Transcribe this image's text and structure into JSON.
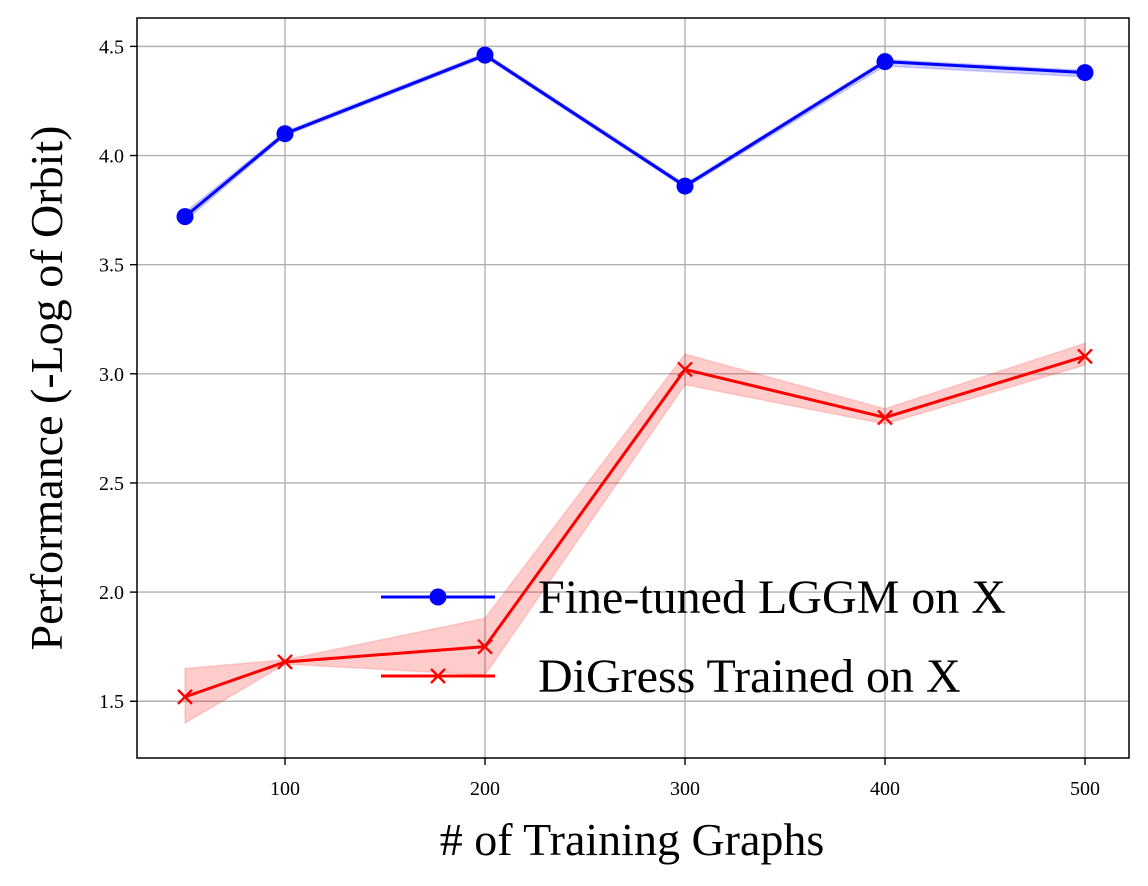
{
  "chart_data": {
    "type": "line",
    "xlabel": "# of Training Graphs",
    "ylabel": "Performance (-Log of Orbit)",
    "xlim": [
      26,
      522
    ],
    "ylim": [
      1.24,
      4.63
    ],
    "xticks": [
      100,
      200,
      300,
      400,
      500
    ],
    "yticks": [
      1.5,
      2.0,
      2.5,
      3.0,
      3.5,
      4.0,
      4.5
    ],
    "xtick_labels": [
      "100",
      "200",
      "300",
      "400",
      "500"
    ],
    "ytick_labels": [
      "1.5",
      "2.0",
      "2.5",
      "3.0",
      "3.5",
      "4.0",
      "4.5"
    ],
    "grid": true,
    "legend_position": "lower-right",
    "x": [
      50,
      100,
      200,
      300,
      400,
      500
    ],
    "series": [
      {
        "name": "Fine-tuned LGGM on X",
        "color": "#0000ff",
        "marker": "circle",
        "values": [
          3.72,
          4.1,
          4.46,
          3.86,
          4.43,
          4.38
        ],
        "band_lower": [
          3.7,
          4.09,
          4.45,
          3.85,
          4.41,
          4.36
        ],
        "band_upper": [
          3.74,
          4.11,
          4.47,
          3.87,
          4.44,
          4.39
        ]
      },
      {
        "name": "DiGress Trained on X",
        "color": "#ff0000",
        "marker": "x",
        "values": [
          1.52,
          1.68,
          1.75,
          3.02,
          2.8,
          3.08
        ],
        "band_lower": [
          1.4,
          1.67,
          1.62,
          2.95,
          2.77,
          3.04
        ],
        "band_upper": [
          1.65,
          1.69,
          1.88,
          3.09,
          2.84,
          3.14
        ]
      }
    ]
  }
}
